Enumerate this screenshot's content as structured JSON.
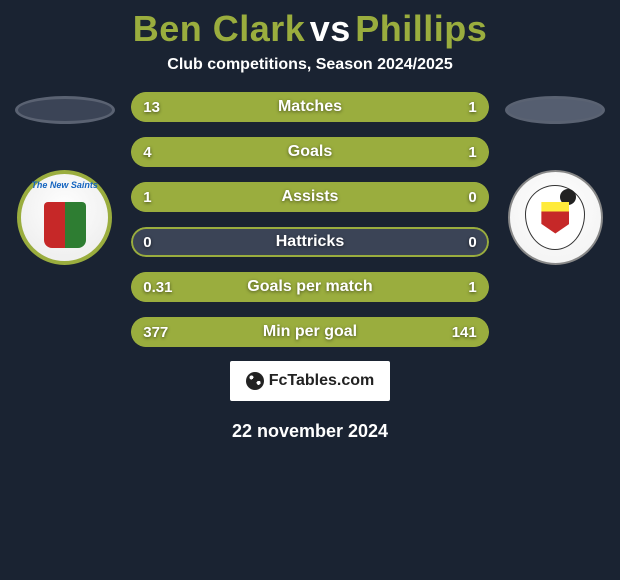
{
  "colors": {
    "background": "#1a2332",
    "accent": "#9aad3e",
    "bar_empty": "#3b4456",
    "bar_border": "#9aad3e",
    "text": "#ffffff",
    "title_colored": "#9aad3e"
  },
  "title": {
    "left_name": "Ben Clark",
    "vs": "vs",
    "right_name": "Phillips"
  },
  "subtitle": "Club competitions, Season 2024/2025",
  "logos": {
    "left_caption": "The New Saints",
    "right_caption": ""
  },
  "stats": [
    {
      "label": "Matches",
      "left_val": "13",
      "right_val": "1",
      "left_pct": 93,
      "right_pct": 7
    },
    {
      "label": "Goals",
      "left_val": "4",
      "right_val": "1",
      "left_pct": 80,
      "right_pct": 20
    },
    {
      "label": "Assists",
      "left_val": "1",
      "right_val": "0",
      "left_pct": 100,
      "right_pct": 0
    },
    {
      "label": "Hattricks",
      "left_val": "0",
      "right_val": "0",
      "left_pct": 0,
      "right_pct": 0
    },
    {
      "label": "Goals per match",
      "left_val": "0.31",
      "right_val": "1",
      "left_pct": 24,
      "right_pct": 76
    },
    {
      "label": "Min per goal",
      "left_val": "377",
      "right_val": "141",
      "left_pct": 27,
      "right_pct": 73
    }
  ],
  "fctables_label": "FcTables.com",
  "date": "22 november 2024"
}
